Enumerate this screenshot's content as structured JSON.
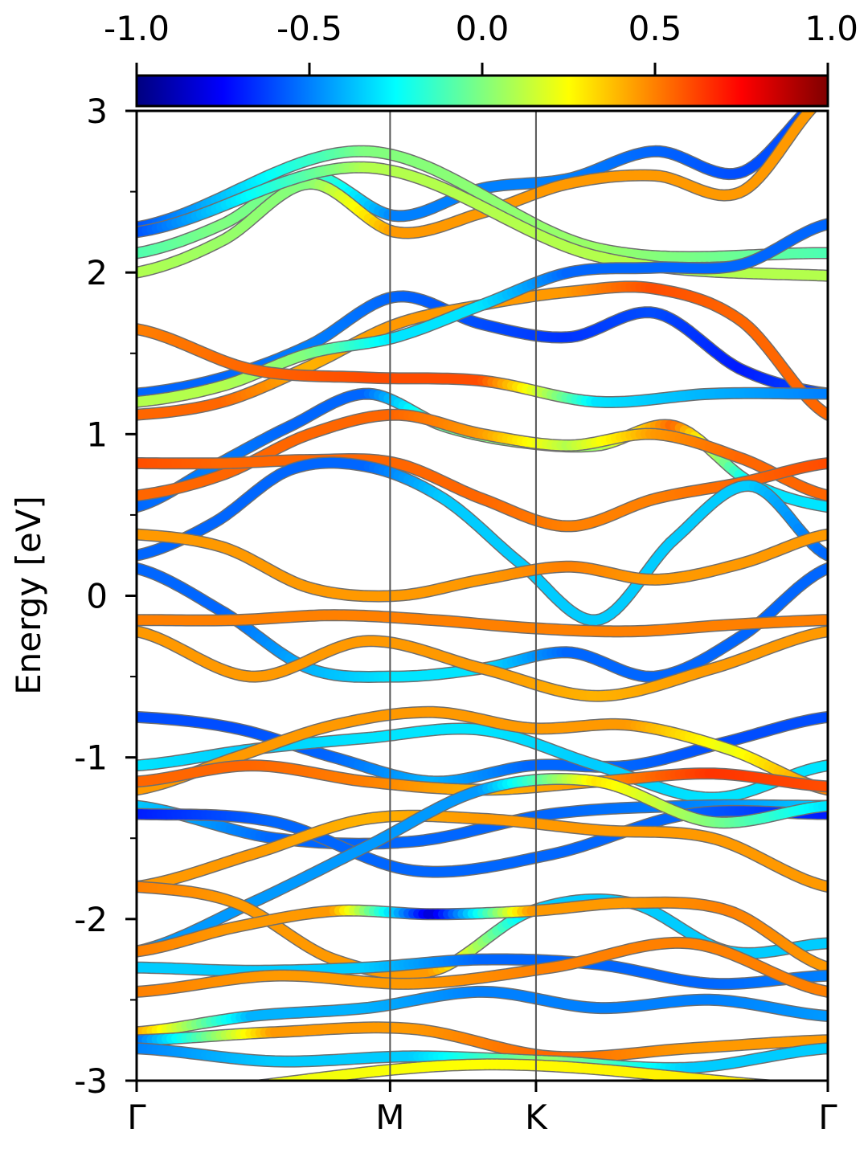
{
  "chart_data": {
    "type": "line",
    "ylabel": "Energy [eV]",
    "ylim": [
      -3,
      3
    ],
    "y_ticks": [
      "3",
      "2",
      "1",
      "0",
      "-1",
      "-2",
      "-3"
    ],
    "y_tick_values": [
      3,
      2,
      1,
      0,
      -1,
      -2,
      -3
    ],
    "x_ticks": [
      "Γ",
      "M",
      "K",
      "Γ"
    ],
    "x_tick_positions": [
      0,
      0.3667,
      0.5778,
      1
    ],
    "colorbar": {
      "ticks": [
        "-1.0",
        "-0.5",
        "0.0",
        "0.5",
        "1.0"
      ],
      "tick_values": [
        -1,
        -0.5,
        0,
        0.5,
        1
      ],
      "range": [
        -1,
        1
      ],
      "colormap": "jet"
    },
    "series": [
      {
        "values": [
          2.12,
          2.3,
          2.6,
          2.35,
          2.52,
          2.58,
          2.75,
          2.62,
          3.1
        ],
        "colors": [
          -0.1,
          0.0,
          -0.05,
          -0.5,
          -0.5,
          -0.5,
          -0.55,
          -0.6,
          -0.6
        ]
      },
      {
        "values": [
          2.0,
          2.2,
          2.55,
          2.25,
          2.37,
          2.55,
          2.6,
          2.5,
          3.1
        ],
        "colors": [
          0.1,
          0.05,
          0.0,
          0.45,
          0.45,
          0.45,
          0.45,
          0.45,
          0.45
        ]
      },
      {
        "values": [
          2.28,
          2.75,
          2.15,
          2.12
        ],
        "colors": [
          -0.6,
          0.0,
          0.05,
          -0.1
        ]
      },
      {
        "values": [
          2.25,
          2.65,
          2.1,
          1.98
        ],
        "colors": [
          -0.6,
          0.1,
          0.1,
          0.1
        ]
      },
      {
        "values": [
          1.25,
          1.35,
          1.55,
          1.85,
          1.68,
          1.6,
          1.75,
          1.4,
          1.25
        ],
        "colors": [
          -0.55,
          -0.55,
          -0.5,
          -0.55,
          -0.6,
          -0.65,
          -0.6,
          -0.7,
          -0.6
        ]
      },
      {
        "values": [
          1.12,
          1.2,
          1.42,
          1.68,
          1.8,
          1.88,
          1.9,
          1.7,
          1.12
        ],
        "colors": [
          0.55,
          0.55,
          0.4,
          0.45,
          0.45,
          0.45,
          0.6,
          0.55,
          0.55
        ]
      },
      {
        "values": [
          1.2,
          1.3,
          1.5,
          1.6,
          1.8,
          2.0,
          2.03,
          2.05,
          2.3
        ],
        "colors": [
          0.1,
          0.1,
          0.0,
          -0.3,
          -0.3,
          -0.55,
          -0.55,
          -0.55,
          -0.55
        ]
      },
      {
        "values": [
          1.65,
          1.4,
          1.35,
          1.33,
          1.2,
          1.25,
          1.25
        ],
        "colors": [
          0.5,
          0.55,
          0.6,
          0.6,
          -0.3,
          -0.4,
          -0.5
        ]
      },
      {
        "values": [
          0.55,
          0.8,
          1.05,
          1.25,
          1.05,
          0.95,
          0.93,
          1.05,
          0.7,
          0.55
        ],
        "colors": [
          -0.55,
          -0.5,
          -0.55,
          -0.55,
          -0.05,
          0.05,
          0.05,
          0.55,
          -0.3,
          -0.3
        ]
      },
      {
        "values": [
          0.62,
          0.75,
          1.0,
          1.12,
          1.0,
          0.93,
          1.0,
          0.85,
          0.62
        ],
        "colors": [
          0.55,
          0.55,
          0.55,
          0.55,
          0.45,
          0.1,
          0.45,
          0.55,
          0.55
        ]
      },
      {
        "values": [
          0.82,
          0.82,
          0.84,
          0.82,
          0.6,
          0.43,
          0.6,
          0.7,
          0.82
        ],
        "colors": [
          0.6,
          0.55,
          0.55,
          0.55,
          0.55,
          0.5,
          0.5,
          0.55,
          0.6
        ]
      },
      {
        "values": [
          0.25,
          0.45,
          0.78,
          0.8,
          0.6,
          0.2,
          -0.15,
          0.35,
          0.68,
          0.25
        ],
        "colors": [
          -0.55,
          -0.55,
          -0.55,
          -0.55,
          -0.35,
          -0.35,
          -0.35,
          -0.35,
          -0.35,
          -0.55
        ]
      },
      {
        "values": [
          0.38,
          0.3,
          0.05,
          0.0,
          0.1,
          0.18,
          0.1,
          0.2,
          0.38
        ],
        "colors": [
          0.45,
          0.45,
          0.45,
          0.45,
          0.45,
          0.5,
          0.45,
          0.45,
          0.45
        ]
      },
      {
        "values": [
          0.17,
          -0.1,
          -0.45,
          -0.5,
          -0.45,
          -0.35,
          -0.5,
          -0.25,
          0.17
        ],
        "colors": [
          -0.55,
          -0.55,
          -0.4,
          -0.3,
          -0.3,
          -0.55,
          -0.55,
          -0.55,
          -0.55
        ]
      },
      {
        "values": [
          -0.15,
          -0.15,
          -0.12,
          -0.15,
          -0.2,
          -0.22,
          -0.18,
          -0.15
        ],
        "colors": [
          0.5,
          0.5,
          0.5,
          0.5,
          0.5,
          0.5,
          0.5,
          0.5
        ]
      },
      {
        "values": [
          -0.22,
          -0.5,
          -0.28,
          -0.45,
          -0.62,
          -0.45,
          -0.22
        ],
        "colors": [
          0.45,
          0.45,
          0.45,
          0.45,
          0.4,
          0.45,
          0.45
        ]
      },
      {
        "values": [
          -0.75,
          -0.82,
          -1.0,
          -1.15,
          -1.05,
          -1.05,
          -0.9,
          -0.75
        ],
        "colors": [
          -0.6,
          -0.6,
          -0.55,
          -0.4,
          -0.55,
          -0.55,
          -0.6,
          -0.6
        ]
      },
      {
        "values": [
          -1.05,
          -0.95,
          -0.88,
          -0.83,
          -1.05,
          -1.25,
          -1.05
        ],
        "colors": [
          -0.3,
          -0.35,
          -0.3,
          -0.3,
          -0.35,
          -0.3,
          -0.3
        ]
      },
      {
        "values": [
          -1.2,
          -1.0,
          -0.8,
          -0.72,
          -0.82,
          -0.8,
          -0.95,
          -1.2
        ],
        "colors": [
          0.45,
          0.45,
          0.45,
          0.45,
          0.45,
          0.45,
          0.2,
          0.5
        ]
      },
      {
        "values": [
          -1.15,
          -1.05,
          -1.15,
          -1.2,
          -1.15,
          -1.1,
          -1.18
        ],
        "colors": [
          0.55,
          0.55,
          0.5,
          0.4,
          0.45,
          0.65,
          0.6
        ]
      },
      {
        "values": [
          -1.3,
          -1.5,
          -1.52,
          -1.35,
          -1.3,
          -1.3
        ],
        "colors": [
          -0.35,
          -0.55,
          -0.55,
          -0.55,
          -0.5,
          -0.35
        ]
      },
      {
        "values": [
          -1.35,
          -1.4,
          -1.7,
          -1.6,
          -1.35,
          -1.35
        ],
        "colors": [
          -0.7,
          -0.55,
          -0.55,
          -0.55,
          -0.55,
          -0.7
        ]
      },
      {
        "values": [
          -1.8,
          -1.6,
          -1.38,
          -1.38,
          -1.45,
          -1.5,
          -1.8
        ],
        "colors": [
          0.45,
          0.45,
          0.4,
          0.45,
          0.45,
          0.45,
          0.45
        ]
      },
      {
        "values": [
          -2.2,
          -1.9,
          -1.55,
          -1.2,
          -1.15,
          -1.4,
          -1.3
        ],
        "colors": [
          -0.45,
          -0.45,
          -0.45,
          -0.45,
          0.3,
          0.0,
          -0.3
        ]
      },
      {
        "values": [
          -1.8,
          -1.9,
          -2.25,
          -2.32,
          -1.95,
          -1.9,
          -2.2,
          -2.15
        ],
        "colors": [
          0.5,
          0.45,
          0.45,
          0.45,
          -0.35,
          -0.35,
          -0.35,
          -0.35
        ]
      },
      {
        "values": [
          -2.2,
          -2.05,
          -1.95,
          -1.97,
          -1.95,
          -1.9,
          -1.95,
          -2.3
        ],
        "colors": [
          0.5,
          0.45,
          0.45,
          -0.85,
          0.45,
          0.45,
          0.5,
          0.45
        ]
      },
      {
        "values": [
          -2.3,
          -2.32,
          -2.3,
          -2.25,
          -2.28,
          -2.4,
          -2.35
        ],
        "colors": [
          -0.35,
          -0.35,
          -0.35,
          -0.55,
          -0.55,
          -0.55,
          -0.5
        ]
      },
      {
        "values": [
          -2.45,
          -2.35,
          -2.4,
          -2.3,
          -2.15,
          -2.45
        ],
        "colors": [
          0.5,
          0.45,
          0.45,
          0.5,
          0.5,
          0.5
        ]
      },
      {
        "values": [
          -2.7,
          -2.6,
          -2.55,
          -2.45,
          -2.55,
          -2.5,
          -2.6
        ],
        "colors": [
          0.45,
          -0.4,
          -0.4,
          -0.5,
          -0.5,
          -0.5,
          -0.45
        ]
      },
      {
        "values": [
          -2.75,
          -2.7,
          -2.68,
          -2.85,
          -2.8,
          -2.75
        ],
        "colors": [
          -0.55,
          0.45,
          0.45,
          0.55,
          0.45,
          0.45
        ]
      },
      {
        "values": [
          -2.8,
          -2.88,
          -2.85,
          -2.88,
          -2.92,
          -2.8
        ],
        "colors": [
          -0.5,
          -0.35,
          -0.35,
          0.05,
          -0.35,
          -0.35
        ]
      },
      {
        "values": [
          -3.1,
          -2.9,
          -3.05
        ],
        "colors": [
          0.2,
          0.25,
          0.3
        ]
      }
    ]
  }
}
